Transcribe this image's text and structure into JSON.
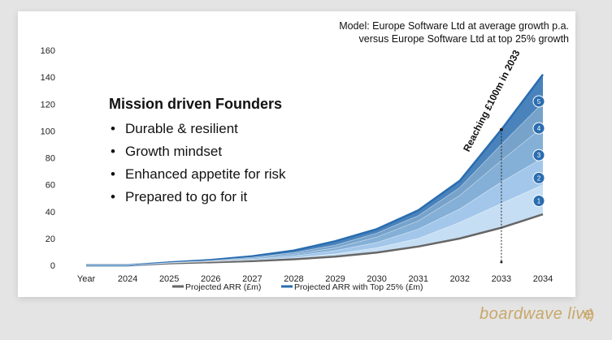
{
  "chart_data": {
    "type": "area",
    "title_lines": [
      "Model: Europe Software Ltd at average growth p.a.",
      "versus Europe Software Ltd at top 25% growth"
    ],
    "x_label_first": "Year",
    "categories": [
      "2024",
      "2025",
      "2026",
      "2027",
      "2028",
      "2029",
      "2030",
      "2031",
      "2032",
      "2033",
      "2034"
    ],
    "ylim": [
      0,
      160
    ],
    "yticks": [
      0,
      20,
      40,
      60,
      80,
      100,
      120,
      140,
      160
    ],
    "series": [
      {
        "name": "Projected ARR (£m)",
        "color": "#666666",
        "values": [
          0,
          1.5,
          2.3,
          3.2,
          4.5,
          6.5,
          9.5,
          14,
          20,
          28,
          38
        ]
      },
      {
        "name": "Band 1",
        "color": "#bcd8f2",
        "values": [
          0,
          1.6,
          2.6,
          3.8,
          5.6,
          8.5,
          13,
          20,
          32,
          46,
          60
        ]
      },
      {
        "name": "Band 2",
        "color": "#93bde6",
        "values": [
          0,
          1.8,
          3.0,
          4.5,
          7.0,
          11,
          17,
          27,
          42,
          62,
          80
        ]
      },
      {
        "name": "Band 3",
        "color": "#6fa1cf",
        "values": [
          0,
          1.9,
          3.3,
          5.2,
          8.3,
          13,
          21,
          33,
          52,
          78,
          103
        ]
      },
      {
        "name": "Band 4",
        "color": "#5f93c2",
        "values": [
          0,
          2.0,
          3.6,
          6.0,
          9.5,
          15,
          24,
          37,
          58,
          90,
          121
        ]
      },
      {
        "name": "Projected ARR with Top 25% (£m)",
        "color": "#2a6db0",
        "values": [
          0,
          2.2,
          4.0,
          6.8,
          11,
          18,
          27,
          41,
          63,
          101,
          142
        ]
      }
    ],
    "legend": [
      "Projected ARR (£m)",
      "Projected ARR with Top 25% (£m)"
    ],
    "legend_colors": [
      "#666666",
      "#2a6db0"
    ],
    "annotation": {
      "text": "Reaching £100m in 2033",
      "x": "2033",
      "y": 101
    },
    "band_markers": [
      {
        "label": "1",
        "y": 48
      },
      {
        "label": "2",
        "y": 65
      },
      {
        "label": "3",
        "y": 82
      },
      {
        "label": "4",
        "y": 102
      },
      {
        "label": "5",
        "y": 122
      }
    ]
  },
  "founders": {
    "heading": "Mission driven Founders",
    "bullet_symbol": "•",
    "items": [
      "Durable & resilient",
      "Growth mindset",
      "Enhanced appetite for risk",
      "Prepared to go for it"
    ]
  },
  "brand": {
    "text": "boardwave live",
    "color": "#c8a86a"
  }
}
